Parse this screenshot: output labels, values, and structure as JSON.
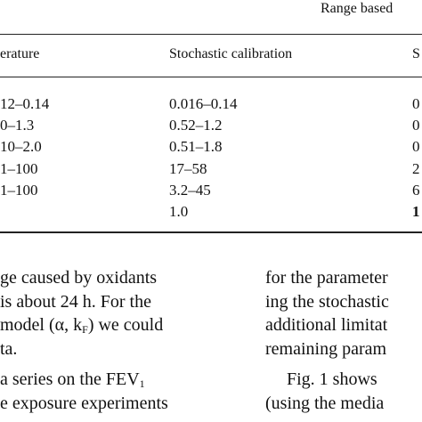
{
  "table": {
    "group_header": "Range based",
    "col_headers": [
      "erature",
      "Stochastic calibration",
      "S"
    ],
    "rows": [
      {
        "c1": "12–0.14",
        "c2": "0.016–0.14",
        "c3": "0"
      },
      {
        "c1": "0–1.3",
        "c2": "0.52–1.2",
        "c3": "0"
      },
      {
        "c1": "10–2.0",
        "c2": "0.51–1.8",
        "c3": "0"
      },
      {
        "c1": "1–100",
        "c2": "17–58",
        "c3": "2"
      },
      {
        "c1": "1–100",
        "c2": "3.2–45",
        "c3": "6"
      },
      {
        "c1": "",
        "c2": "1.0",
        "c3": "1"
      }
    ]
  },
  "left_column": {
    "lines": [
      "ge caused by oxidants",
      "is about 24 h. For the",
      "model (α, k",
      "ta.",
      "a series on the FEV",
      "e exposure experiments"
    ],
    "kf_sub": "F",
    "kf_tail": ") we could",
    "fev_sub": "1"
  },
  "right_column": {
    "lines": [
      "for the parameter",
      "ing the stochastic",
      "additional limitat",
      "remaining param",
      "Fig. 1 shows",
      "(using the media"
    ]
  }
}
